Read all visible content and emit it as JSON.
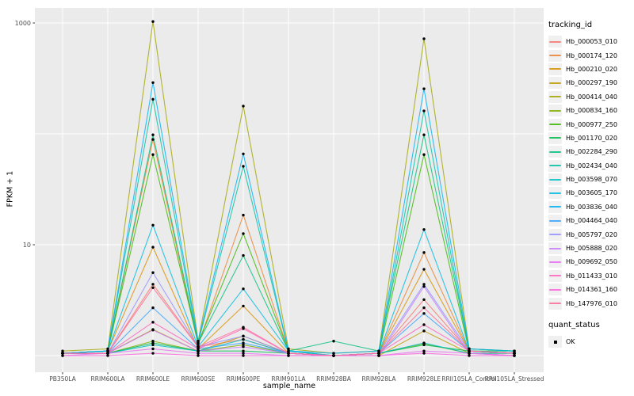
{
  "chart_data": {
    "type": "line",
    "title": "",
    "xlabel": "sample_name",
    "ylabel": "FPKM + 1",
    "y_scale": "log10",
    "grid": "major-white-on-gray",
    "legend_position": "right",
    "y_breaks": [
      {
        "label": "1000",
        "value": 1000
      },
      {
        "label": "10",
        "value": 10
      }
    ],
    "y_gridline_values": [
      1,
      10,
      100,
      1000
    ],
    "ylim": [
      0.7,
      1400
    ],
    "categories": [
      "PB350LA",
      "RRIM600LA",
      "RRIM600LE",
      "RRIM600SE",
      "RRIM600PE",
      "RRIM901LA",
      "RRIM928BA",
      "RRIM928LA",
      "RRIM928LE",
      "RRII105LA_Control",
      "RRII105LA_Stressed"
    ],
    "series": [
      {
        "name": "Hb_000053_010",
        "color": "#F8766D",
        "values": [
          1.05,
          1.05,
          4.4,
          1.2,
          1.4,
          1.05,
          1.0,
          1.05,
          3.2,
          1.1,
          1.05
        ]
      },
      {
        "name": "Hb_000174_120",
        "color": "#EA8331",
        "values": [
          1.05,
          1.1,
          89,
          1.25,
          18.5,
          1.1,
          1.0,
          1.05,
          8.5,
          1.1,
          1.05
        ]
      },
      {
        "name": "Hb_000210_020",
        "color": "#D89000",
        "values": [
          1.05,
          1.1,
          9.5,
          1.15,
          2.8,
          1.05,
          1.0,
          1.05,
          6.0,
          1.1,
          1.05
        ]
      },
      {
        "name": "Hb_000297_190",
        "color": "#C09B00",
        "values": [
          1.05,
          1.05,
          1.72,
          1.1,
          1.5,
          1.05,
          1.0,
          1.0,
          1.67,
          1.05,
          1.0
        ]
      },
      {
        "name": "Hb_000414_040",
        "color": "#A3A500",
        "values": [
          1.1,
          1.15,
          1030,
          1.35,
          178,
          1.15,
          1.05,
          1.1,
          720,
          1.15,
          1.1
        ]
      },
      {
        "name": "Hb_000834_160",
        "color": "#7CAE00",
        "values": [
          1.05,
          1.05,
          1.35,
          1.1,
          1.25,
          1.05,
          1.0,
          1.05,
          1.28,
          1.05,
          1.05
        ]
      },
      {
        "name": "Hb_000977_250",
        "color": "#39B600",
        "values": [
          1.05,
          1.1,
          65,
          1.3,
          12.6,
          1.1,
          1.0,
          1.05,
          65,
          1.1,
          1.05
        ]
      },
      {
        "name": "Hb_001170_020",
        "color": "#00BB4E",
        "values": [
          1.05,
          1.05,
          1.3,
          1.1,
          1.1,
          1.05,
          1.0,
          1.05,
          1.25,
          1.1,
          1.1
        ]
      },
      {
        "name": "Hb_002284_290",
        "color": "#00BF7D",
        "values": [
          1.05,
          1.1,
          98,
          1.3,
          8.0,
          1.1,
          1.35,
          1.1,
          98,
          1.15,
          1.1
        ]
      },
      {
        "name": "Hb_002434_040",
        "color": "#00C1A3",
        "values": [
          1.05,
          1.1,
          205,
          1.3,
          51,
          1.1,
          1.0,
          1.05,
          161,
          1.1,
          1.05
        ]
      },
      {
        "name": "Hb_003598_070",
        "color": "#00BFC4",
        "values": [
          1.05,
          1.05,
          1.25,
          1.1,
          1.4,
          1.05,
          1.0,
          1.05,
          1.3,
          1.05,
          1.05
        ]
      },
      {
        "name": "Hb_003605_170",
        "color": "#00BAE0",
        "values": [
          1.05,
          1.1,
          15,
          1.2,
          4.0,
          1.1,
          1.0,
          1.05,
          13.7,
          1.1,
          1.05
        ]
      },
      {
        "name": "Hb_003836_040",
        "color": "#00B0F6",
        "values": [
          1.05,
          1.1,
          290,
          1.35,
          66,
          1.1,
          1.05,
          1.1,
          255,
          1.15,
          1.1
        ]
      },
      {
        "name": "Hb_004464_040",
        "color": "#35A2FF",
        "values": [
          1.05,
          1.05,
          2.7,
          1.15,
          1.3,
          1.05,
          1.0,
          1.05,
          2.4,
          1.1,
          1.05
        ]
      },
      {
        "name": "Hb_005797_020",
        "color": "#9590FF",
        "values": [
          1.05,
          1.05,
          5.6,
          1.2,
          1.5,
          1.05,
          1.0,
          1.05,
          4.4,
          1.1,
          1.05
        ]
      },
      {
        "name": "Hb_005888_020",
        "color": "#C77CFF",
        "values": [
          1.05,
          1.05,
          1.7,
          1.1,
          1.2,
          1.05,
          1.0,
          1.0,
          4.2,
          1.05,
          1.0
        ]
      },
      {
        "name": "Hb_009692_050",
        "color": "#E76BF3",
        "values": [
          1.0,
          1.05,
          1.15,
          1.05,
          1.05,
          1.0,
          1.0,
          1.0,
          1.1,
          1.05,
          1.0
        ]
      },
      {
        "name": "Hb_011433_010",
        "color": "#FF62BC",
        "values": [
          1.05,
          1.05,
          2.0,
          1.15,
          1.75,
          1.05,
          1.0,
          1.05,
          1.9,
          1.1,
          1.05
        ]
      },
      {
        "name": "Hb_014361_160",
        "color": "#FA62DB",
        "values": [
          1.0,
          1.0,
          1.05,
          1.0,
          1.0,
          1.0,
          1.0,
          1.0,
          1.05,
          1.0,
          1.0
        ]
      },
      {
        "name": "Hb_147976_010",
        "color": "#FF6A98",
        "values": [
          1.05,
          1.05,
          4.1,
          1.2,
          1.8,
          1.05,
          1.0,
          1.05,
          2.7,
          1.1,
          1.05
        ]
      }
    ],
    "legend": {
      "tracking_title": "tracking_id",
      "quant_title": "quant_status",
      "quant_items": [
        {
          "label": "OK",
          "marker": "black-square"
        }
      ]
    },
    "colors": {
      "panel_bg": "#EBEBEB",
      "gridline": "#FFFFFF",
      "point": "#000000",
      "tick_text": "#4D4D4D",
      "tick_mark": "#333333",
      "legend_key_bg": "#F0F0F0"
    }
  }
}
